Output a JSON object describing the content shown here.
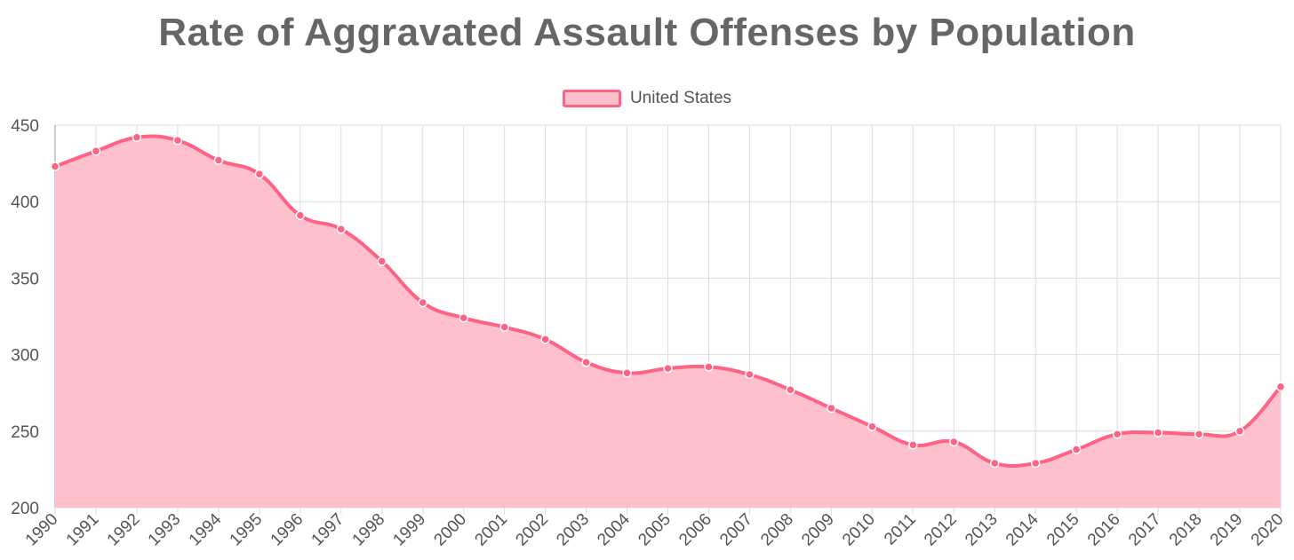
{
  "chart_data": {
    "type": "area",
    "title": "Rate of Aggravated Assault Offenses by Population",
    "xlabel": "",
    "ylabel": "",
    "ylim": [
      200,
      450
    ],
    "yticks": [
      200,
      250,
      300,
      350,
      400,
      450
    ],
    "grid": true,
    "legend_position": "top-center",
    "categories": [
      "1990",
      "1991",
      "1992",
      "1993",
      "1994",
      "1995",
      "1996",
      "1997",
      "1998",
      "1999",
      "2000",
      "2001",
      "2002",
      "2003",
      "2004",
      "2005",
      "2006",
      "2007",
      "2008",
      "2009",
      "2010",
      "2011",
      "2012",
      "2013",
      "2014",
      "2015",
      "2016",
      "2017",
      "2018",
      "2019",
      "2020"
    ],
    "series": [
      {
        "name": "United States",
        "line_color": "#ff6384",
        "fill_color": "#ffc0cd",
        "values": [
          423,
          433,
          442,
          440,
          427,
          418,
          391,
          382,
          361,
          334,
          324,
          318,
          310,
          295,
          288,
          291,
          292,
          287,
          277,
          265,
          253,
          241,
          243,
          229,
          229,
          238,
          248,
          249,
          248,
          250,
          279
        ]
      }
    ]
  }
}
